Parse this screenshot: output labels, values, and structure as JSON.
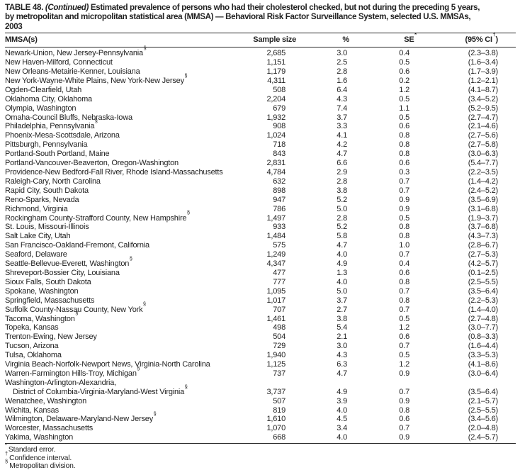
{
  "title": {
    "label": "TABLE 48.",
    "continued": "(Continued)",
    "line1_rest": "Estimated prevalence of persons who had their cholesterol checked, but not during the preceding 5 years,",
    "line2": "by metropolitan and micropolitan statistical area (MMSA) — Behavioral Risk Factor Surveillance System, selected U.S. MMSAs,",
    "line3": "2003"
  },
  "table": {
    "columns": [
      {
        "label": "MMSA(s)"
      },
      {
        "label": "Sample size"
      },
      {
        "label": "%"
      },
      {
        "label": "SE",
        "sup": "*"
      },
      {
        "label": "(95% CI",
        "sup": "†",
        "tail": ")"
      }
    ],
    "rows": [
      {
        "name": "Newark-Union, New Jersey-Pennsylvania",
        "sup": "§",
        "sample": "2,685",
        "pct": "3.0",
        "se": "0.4",
        "ci": "(2.3–3.8)"
      },
      {
        "name": "New Haven-Milford, Connecticut",
        "sample": "1,151",
        "pct": "2.5",
        "se": "0.5",
        "ci": "(1.6–3.4)"
      },
      {
        "name": "New Orleans-Metairie-Kenner, Louisiana",
        "sample": "1,179",
        "pct": "2.8",
        "se": "0.6",
        "ci": "(1.7–3.9)"
      },
      {
        "name": "New York-Wayne-White Plains, New York-New Jersey",
        "sup": "§",
        "sample": "4,311",
        "pct": "1.6",
        "se": "0.2",
        "ci": "(1.2–2.1)"
      },
      {
        "name": "Ogden-Clearfield, Utah",
        "sample": "508",
        "pct": "6.4",
        "se": "1.2",
        "ci": "(4.1–8.7)"
      },
      {
        "name": "Oklahoma City, Oklahoma",
        "sample": "2,204",
        "pct": "4.3",
        "se": "0.5",
        "ci": "(3.4–5.2)"
      },
      {
        "name": "Olympia, Washington",
        "sample": "679",
        "pct": "7.4",
        "se": "1.1",
        "ci": "(5.2–9.5)"
      },
      {
        "name": "Omaha-Council Bluffs, Nebraska-Iowa",
        "sample": "1,932",
        "pct": "3.7",
        "se": "0.5",
        "ci": "(2.7–4.7)"
      },
      {
        "name": "Philadelphia, Pennsylvania",
        "sup": "§",
        "sample": "908",
        "pct": "3.3",
        "se": "0.6",
        "ci": "(2.1–4.6)"
      },
      {
        "name": "Phoenix-Mesa-Scottsdale, Arizona",
        "sample": "1,024",
        "pct": "4.1",
        "se": "0.8",
        "ci": "(2.7–5.6)"
      },
      {
        "name": "Pittsburgh, Pennsylvania",
        "sample": "718",
        "pct": "4.2",
        "se": "0.8",
        "ci": "(2.7–5.8)"
      },
      {
        "name": "Portland-South Portland, Maine",
        "sample": "843",
        "pct": "4.7",
        "se": "0.8",
        "ci": "(3.0–6.3)"
      },
      {
        "name": "Portland-Vancouver-Beaverton, Oregon-Washington",
        "sample": "2,831",
        "pct": "6.6",
        "se": "0.6",
        "ci": "(5.4–7.7)"
      },
      {
        "name": "Providence-New Bedford-Fall River, Rhode Island-Massachusetts",
        "sample": "4,784",
        "pct": "2.9",
        "se": "0.3",
        "ci": "(2.2–3.5)"
      },
      {
        "name": "Raleigh-Cary, North Carolina",
        "sample": "632",
        "pct": "2.8",
        "se": "0.7",
        "ci": "(1.4–4.2)"
      },
      {
        "name": "Rapid City, South Dakota",
        "sample": "898",
        "pct": "3.8",
        "se": "0.7",
        "ci": "(2.4–5.2)"
      },
      {
        "name": "Reno-Sparks, Nevada",
        "sample": "947",
        "pct": "5.2",
        "se": "0.9",
        "ci": "(3.5–6.9)"
      },
      {
        "name": "Richmond, Virginia",
        "sample": "786",
        "pct": "5.0",
        "se": "0.9",
        "ci": "(3.1–6.8)"
      },
      {
        "name": "Rockingham County-Strafford County, New Hampshire",
        "sup": "§",
        "sample": "1,497",
        "pct": "2.8",
        "se": "0.5",
        "ci": "(1.9–3.7)"
      },
      {
        "name": "St. Louis, Missouri-Illinois",
        "sample": "933",
        "pct": "5.2",
        "se": "0.8",
        "ci": "(3.7–6.8)"
      },
      {
        "name": "Salt Lake City, Utah",
        "sample": "1,484",
        "pct": "5.8",
        "se": "0.8",
        "ci": "(4.3–7.3)"
      },
      {
        "name": "San Francisco-Oakland-Fremont, California",
        "sample": "575",
        "pct": "4.7",
        "se": "1.0",
        "ci": "(2.8–6.7)"
      },
      {
        "name": "Seaford, Delaware",
        "sample": "1,249",
        "pct": "4.0",
        "se": "0.7",
        "ci": "(2.7–5.3)"
      },
      {
        "name": "Seattle-Bellevue-Everett, Washington",
        "sup": "§",
        "sample": "4,347",
        "pct": "4.9",
        "se": "0.4",
        "ci": "(4.2–5.7)"
      },
      {
        "name": "Shreveport-Bossier City, Louisiana",
        "sample": "477",
        "pct": "1.3",
        "se": "0.6",
        "ci": "(0.1–2.5)"
      },
      {
        "name": "Sioux Falls, South Dakota",
        "sample": "777",
        "pct": "4.0",
        "se": "0.8",
        "ci": "(2.5–5.5)"
      },
      {
        "name": "Spokane, Washington",
        "sample": "1,095",
        "pct": "5.0",
        "se": "0.7",
        "ci": "(3.5–6.4)"
      },
      {
        "name": "Springfield, Massachusetts",
        "sample": "1,017",
        "pct": "3.7",
        "se": "0.8",
        "ci": "(2.2–5.3)"
      },
      {
        "name": "Suffolk County-Nassau County, New York",
        "sup": "§",
        "sample": "707",
        "pct": "2.7",
        "se": "0.7",
        "ci": "(1.4–4.0)"
      },
      {
        "name": "Tacoma, Washington",
        "sup": "§",
        "sample": "1,461",
        "pct": "3.8",
        "se": "0.5",
        "ci": "(2.7–4.8)"
      },
      {
        "name": "Topeka, Kansas",
        "sample": "498",
        "pct": "5.4",
        "se": "1.2",
        "ci": "(3.0–7.7)"
      },
      {
        "name": "Trenton-Ewing, New Jersey",
        "sample": "504",
        "pct": "2.1",
        "se": "0.6",
        "ci": "(0.8–3.3)"
      },
      {
        "name": "Tucson, Arizona",
        "sample": "729",
        "pct": "3.0",
        "se": "0.7",
        "ci": "(1.6–4.4)"
      },
      {
        "name": "Tulsa, Oklahoma",
        "sample": "1,940",
        "pct": "4.3",
        "se": "0.5",
        "ci": "(3.3–5.3)"
      },
      {
        "name": "Virginia Beach-Norfolk-Newport News, Virginia-North Carolina",
        "sample": "1,125",
        "pct": "6.3",
        "se": "1.2",
        "ci": "(4.1–8.6)"
      },
      {
        "name": "Warren-Farmington Hills-Troy, Michigan",
        "sup": "§",
        "sample": "737",
        "pct": "4.7",
        "se": "0.9",
        "ci": "(3.0–6.4)"
      },
      {
        "name": "Washington-Arlington-Alexandria,",
        "name2": "District of Columbia-Virginia-Maryland-West Virginia",
        "sup2": "§",
        "sample": "3,737",
        "pct": "4.9",
        "se": "0.7",
        "ci": "(3.5–6.4)"
      },
      {
        "name": "Wenatchee, Washington",
        "sample": "507",
        "pct": "3.9",
        "se": "0.9",
        "ci": "(2.1–5.7)"
      },
      {
        "name": "Wichita, Kansas",
        "sample": "819",
        "pct": "4.0",
        "se": "0.8",
        "ci": "(2.5–5.5)"
      },
      {
        "name": "Wilmington, Delaware-Maryland-New Jersey",
        "sup": "§",
        "sample": "1,610",
        "pct": "4.5",
        "se": "0.6",
        "ci": "(3.4–5.6)"
      },
      {
        "name": "Worcester, Massachusetts",
        "sample": "1,070",
        "pct": "3.4",
        "se": "0.7",
        "ci": "(2.0–4.8)"
      },
      {
        "name": "Yakima, Washington",
        "sample": "668",
        "pct": "4.0",
        "se": "0.9",
        "ci": "(2.4–5.7)"
      }
    ]
  },
  "footnotes": [
    {
      "sup": "*",
      "text": "Standard error."
    },
    {
      "sup": "†",
      "text": "Confidence interval."
    },
    {
      "sup": "§",
      "text": "Metropolitan division."
    }
  ]
}
